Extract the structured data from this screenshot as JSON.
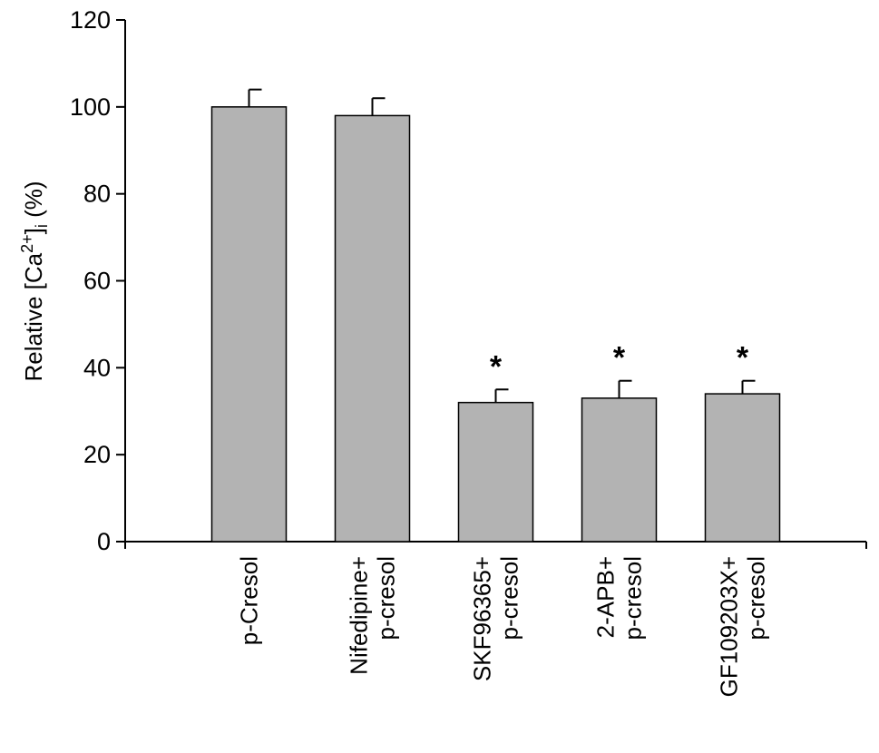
{
  "chart_data": {
    "type": "bar",
    "title": "",
    "xlabel": "",
    "ylabel": {
      "prefix": "Relative [Ca",
      "superscript": "2+",
      "bracket_close": "]",
      "subscript": "i",
      "suffix": " (%)"
    },
    "ylim": [
      0,
      120
    ],
    "yticks": [
      0,
      20,
      40,
      60,
      80,
      100,
      120
    ],
    "grid": false,
    "bar_color": "#b3b3b3",
    "categories": [
      [
        "p-Cresol"
      ],
      [
        "Nifedipine+",
        "p-cresol"
      ],
      [
        "SKF96365+",
        "p-cresol"
      ],
      [
        "2-APB+",
        "p-cresol"
      ],
      [
        "GF109203X+",
        "p-cresol"
      ]
    ],
    "values": [
      100,
      98,
      32,
      33,
      34
    ],
    "errors": [
      4,
      4,
      3,
      4,
      3
    ],
    "significance": [
      "",
      "",
      "*",
      "*",
      "*"
    ]
  }
}
